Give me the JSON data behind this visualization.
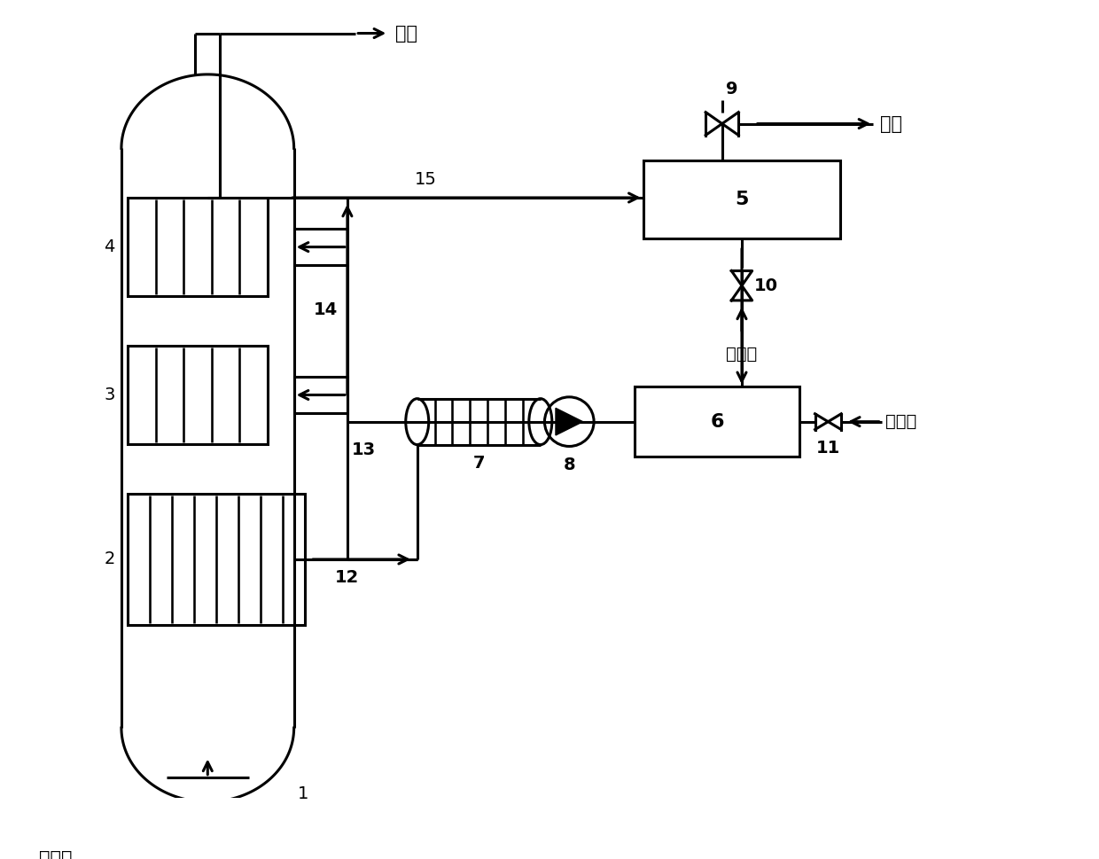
{
  "bg_color": "#ffffff",
  "line_color": "#000000",
  "lw": 2.2,
  "fig_width": 12.4,
  "fig_height": 9.69,
  "labels": {
    "chan_qi": "产气",
    "he_cheng_qi": "合成气",
    "zheng_qi": "蒸汽",
    "bu_chong_shui1": "补充水",
    "bu_chong_shui2": "补充水",
    "n1": "1",
    "n2": "2",
    "n3": "3",
    "n4": "4",
    "n5": "5",
    "n6": "6",
    "n7": "7",
    "n8": "8",
    "n9": "9",
    "n10": "10",
    "n11": "11",
    "n12": "12",
    "n13": "13",
    "n14": "14",
    "n15": "15"
  }
}
